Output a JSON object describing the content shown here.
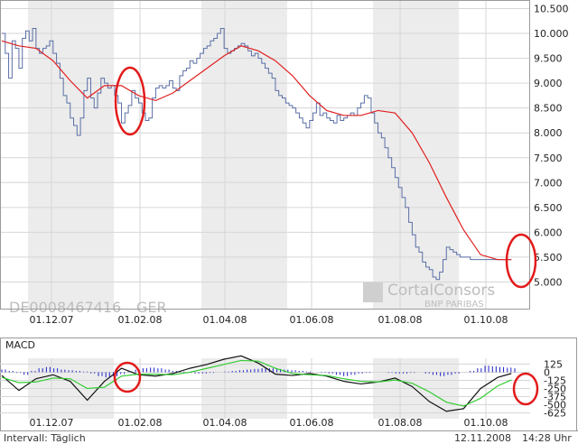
{
  "chart_data": [
    {
      "type": "line",
      "ylim": [
        4500,
        10600
      ],
      "x_ticks": [
        "01.12.07",
        "01.02.08",
        "01.04.08",
        "01.06.08",
        "01.08.08",
        "01.10.08"
      ],
      "y_ticks": [
        "10.500",
        "10.000",
        "9.500",
        "9.000",
        "8.500",
        "8.000",
        "7.500",
        "7.000",
        "6.500",
        "6.000",
        "5.500",
        "5.000"
      ],
      "y_tick_values": [
        10500,
        10000,
        9500,
        9000,
        8500,
        8000,
        7500,
        7000,
        6500,
        6000,
        5500,
        5000
      ],
      "grid": true,
      "series": [
        {
          "color": "#5a6fa6",
          "x": [
            0,
            2,
            4,
            6,
            8,
            10,
            12,
            14,
            16,
            18,
            20,
            22,
            24,
            26,
            28,
            30,
            32,
            34,
            36,
            38,
            40,
            42,
            44,
            46,
            48,
            50,
            52,
            54,
            56,
            58,
            60,
            62,
            64,
            66,
            68,
            70,
            72,
            74,
            76,
            78,
            80,
            82,
            84,
            86,
            88,
            90,
            92,
            94,
            96,
            98,
            100,
            102,
            104,
            106,
            108,
            110,
            112,
            114,
            116,
            118,
            120,
            122,
            124,
            126,
            128,
            130,
            132,
            134,
            136,
            138,
            140,
            142,
            144,
            146,
            148,
            150,
            152,
            154,
            156,
            158,
            160,
            162,
            164,
            166,
            168,
            170,
            172,
            174,
            176,
            178,
            180,
            182,
            184,
            186,
            188,
            190,
            192,
            194,
            196,
            198,
            200,
            202,
            204,
            206,
            208,
            210,
            212,
            214,
            216,
            218,
            220,
            222,
            224,
            226,
            228,
            230,
            232,
            234,
            236,
            238,
            240,
            242,
            244,
            246,
            248,
            250,
            252,
            254,
            256,
            258,
            260,
            262,
            264,
            266,
            268,
            270,
            272,
            274,
            276,
            278,
            280,
            282,
            284,
            286,
            288,
            290,
            292,
            294,
            296,
            298
          ],
          "values": [
            10000,
            9600,
            9100,
            9850,
            9700,
            9300,
            9900,
            10050,
            9850,
            10100,
            9700,
            9600,
            9700,
            9750,
            9850,
            9600,
            9400,
            9100,
            8750,
            8600,
            8300,
            8150,
            7950,
            8300,
            8850,
            9100,
            8700,
            8500,
            8800,
            9100,
            9000,
            8900,
            8950,
            8750,
            8600,
            8200,
            8400,
            8550,
            8850,
            8700,
            8600,
            8400,
            8250,
            8300,
            8700,
            8900,
            8950,
            8900,
            8950,
            9050,
            8900,
            8850,
            9150,
            9250,
            9300,
            9450,
            9400,
            9500,
            9600,
            9700,
            9750,
            9850,
            9900,
            10000,
            10100,
            9700,
            9600,
            9650,
            9700,
            9750,
            9800,
            9750,
            9650,
            9550,
            9600,
            9500,
            9400,
            9300,
            9200,
            9100,
            8850,
            8750,
            8700,
            8600,
            8550,
            8500,
            8400,
            8300,
            8200,
            8100,
            8250,
            8400,
            8600,
            8350,
            8400,
            8300,
            8250,
            8200,
            8350,
            8250,
            8300,
            8350,
            8400,
            8350,
            8500,
            8600,
            8750,
            8700,
            8400,
            8200,
            8000,
            7900,
            7700,
            7500,
            7300,
            7100,
            6900,
            6700,
            6500,
            6200,
            5950,
            5700,
            5600,
            5400,
            5300,
            5250,
            5100,
            5050,
            5200,
            5450,
            5700,
            5650,
            5600,
            5550,
            5500,
            5500,
            5500,
            5450,
            5450,
            5450,
            5450,
            5450,
            5450,
            5450,
            5450,
            5450,
            5450,
            5450,
            5450,
            5450
          ]
        },
        {
          "color": "#e02020",
          "x": [
            0,
            10,
            20,
            30,
            40,
            50,
            60,
            70,
            80,
            90,
            100,
            110,
            120,
            130,
            140,
            150,
            160,
            170,
            180,
            190,
            200,
            210,
            220,
            230,
            240,
            250,
            260,
            270,
            280,
            290,
            298
          ],
          "values": [
            9850,
            9750,
            9700,
            9450,
            9050,
            8700,
            8950,
            8950,
            8750,
            8650,
            8800,
            9050,
            9300,
            9550,
            9750,
            9650,
            9450,
            9150,
            8750,
            8450,
            8350,
            8350,
            8450,
            8400,
            8000,
            7400,
            6700,
            6050,
            5550,
            5450,
            5450
          ]
        }
      ]
    },
    {
      "type": "line",
      "title": "MACD",
      "ylim": [
        -700,
        200
      ],
      "x_ticks": [
        "01.12.07",
        "01.02.08",
        "01.04.08",
        "01.06.08",
        "01.08.08",
        "01.10.08"
      ],
      "y_ticks": [
        "125",
        "0",
        "-125",
        "-250",
        "-375",
        "-500",
        "-625"
      ],
      "y_tick_values": [
        125,
        0,
        -125,
        -250,
        -375,
        -500,
        -625
      ],
      "grid": true,
      "histogram": {
        "color": "#1c22c8",
        "values": [
          40,
          20,
          -10,
          -40,
          20,
          60,
          80,
          60,
          40,
          30,
          20,
          10,
          -20,
          -60,
          -80,
          -60,
          -30,
          10,
          40,
          60,
          70,
          60,
          40,
          20,
          10,
          -10,
          -20,
          -20,
          -10,
          0,
          10,
          20,
          30,
          40,
          50,
          60,
          60,
          50,
          40,
          30,
          20,
          10,
          0,
          -10,
          -20,
          -40,
          -60,
          -40,
          -20,
          -10,
          0,
          0,
          -10,
          -20,
          -20,
          -10,
          0,
          -20,
          -40,
          -60,
          -40,
          -20,
          0,
          20,
          60,
          100,
          90,
          80,
          70,
          60
        ]
      },
      "series": [
        {
          "color": "#111111",
          "x": [
            0,
            10,
            20,
            30,
            40,
            50,
            60,
            70,
            80,
            90,
            100,
            110,
            120,
            130,
            140,
            150,
            160,
            170,
            180,
            190,
            200,
            210,
            220,
            230,
            240,
            250,
            260,
            270,
            280,
            290,
            298
          ],
          "values": [
            -50,
            -280,
            -100,
            -40,
            -140,
            -430,
            -140,
            60,
            -40,
            -60,
            -20,
            60,
            120,
            200,
            250,
            140,
            -30,
            -50,
            -20,
            -60,
            -140,
            -180,
            -150,
            -90,
            -220,
            -450,
            -600,
            -560,
            -250,
            -80,
            -20
          ]
        },
        {
          "color": "#33cc33",
          "x": [
            0,
            10,
            20,
            30,
            40,
            50,
            60,
            70,
            80,
            90,
            100,
            110,
            120,
            130,
            140,
            150,
            160,
            170,
            180,
            190,
            200,
            210,
            220,
            230,
            240,
            250,
            260,
            270,
            280,
            290,
            298
          ],
          "values": [
            -80,
            -160,
            -150,
            -90,
            -100,
            -250,
            -230,
            -60,
            -30,
            -30,
            -40,
            0,
            60,
            120,
            180,
            170,
            60,
            -20,
            -40,
            -50,
            -100,
            -140,
            -150,
            -120,
            -170,
            -300,
            -460,
            -520,
            -400,
            -210,
            -120
          ]
        }
      ]
    }
  ],
  "labels": {
    "instrument_id": "DE0008467416",
    "exchange": "GER",
    "watermark_brand": "CortalConsors",
    "watermark_sub": "BNP PARIBAS",
    "interval": "Intervall: Täglich",
    "date": "12.11.2008",
    "time": "14:28 Uhr"
  }
}
